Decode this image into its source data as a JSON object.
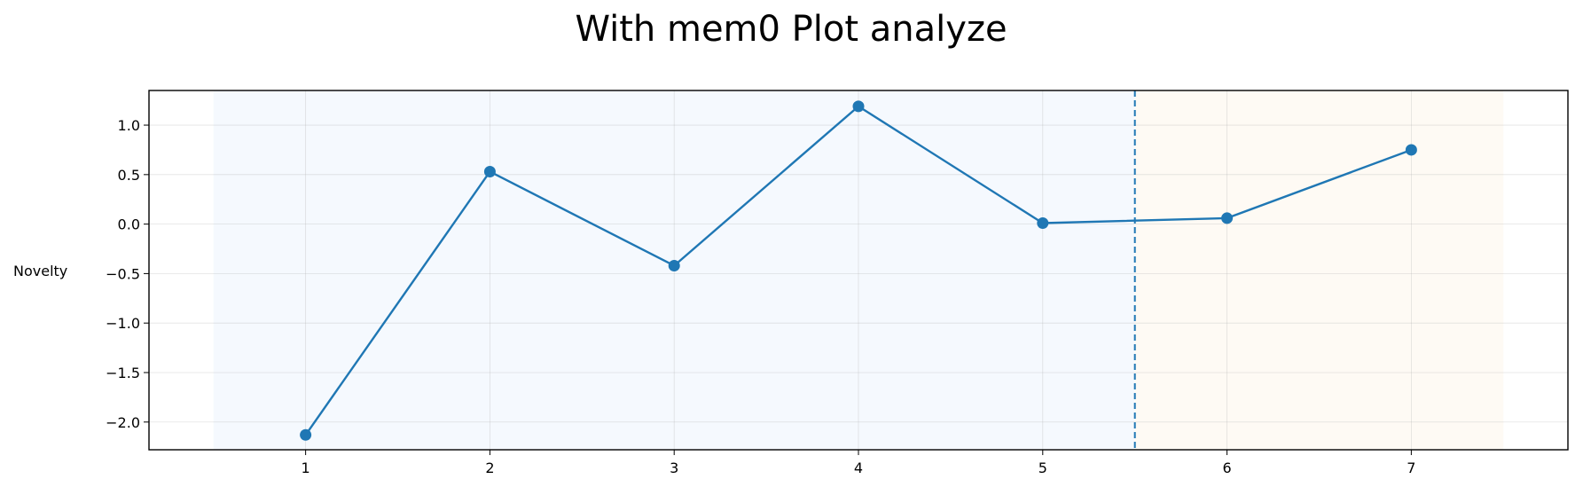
{
  "chart_data": {
    "type": "line",
    "title": "With mem0 Plot analyze",
    "xlabel": "",
    "ylabel": "Novelty",
    "x": [
      1,
      2,
      3,
      4,
      5,
      6,
      7
    ],
    "series": [
      {
        "values": [
          -2.13,
          0.53,
          -0.42,
          1.19,
          0.01,
          0.06,
          0.75
        ],
        "color": "#1f77b4"
      }
    ],
    "xlim": [
      0.15,
      7.85
    ],
    "ylim": [
      -2.28,
      1.35
    ],
    "xticks": [
      1,
      2,
      3,
      4,
      5,
      6,
      7
    ],
    "yticks": [
      1.0,
      0.5,
      0.0,
      -0.5,
      -1.0,
      -1.5,
      -2.0
    ],
    "ytick_labels": [
      "1.0",
      "0.5",
      "0.0",
      "−0.5",
      "−1.0",
      "−1.5",
      "−2.0"
    ],
    "grid": true,
    "shaded_regions": [
      {
        "x_start": 0.5,
        "x_end": 5.5,
        "color": "#f5f9fe"
      },
      {
        "x_start": 5.5,
        "x_end": 7.5,
        "color": "#fefaf4"
      }
    ],
    "vline": {
      "x": 5.5,
      "style": "dashed",
      "color": "#1f77b4"
    }
  }
}
